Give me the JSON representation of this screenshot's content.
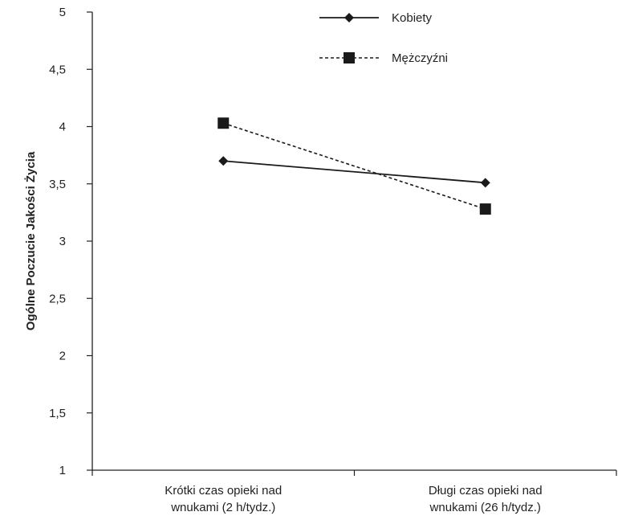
{
  "chart_data": {
    "type": "line",
    "title": "",
    "xlabel": "",
    "ylabel": "Ogólne Poczucie Jakości Życia",
    "ylim": [
      1,
      5
    ],
    "yticks": [
      "1",
      "1,5",
      "2",
      "2,5",
      "3",
      "3,5",
      "4",
      "4,5",
      "5"
    ],
    "ytick_values": [
      1,
      1.5,
      2,
      2.5,
      3,
      3.5,
      4,
      4.5,
      5
    ],
    "categories": [
      [
        "Krótki czas opieki nad",
        "wnukami (2 h/tydz.)"
      ],
      [
        "Długi czas opieki nad",
        "wnukami (26 h/tydz.)"
      ]
    ],
    "series": [
      {
        "name": "Kobiety",
        "values": [
          3.7,
          3.51
        ],
        "line": "solid",
        "marker": "diamond",
        "color": "#1a1a1a"
      },
      {
        "name": "Mężczyźni",
        "values": [
          4.03,
          3.28
        ],
        "line": "dashed",
        "marker": "square",
        "color": "#1a1a1a"
      }
    ],
    "legend_position": "top-right",
    "grid": false
  }
}
